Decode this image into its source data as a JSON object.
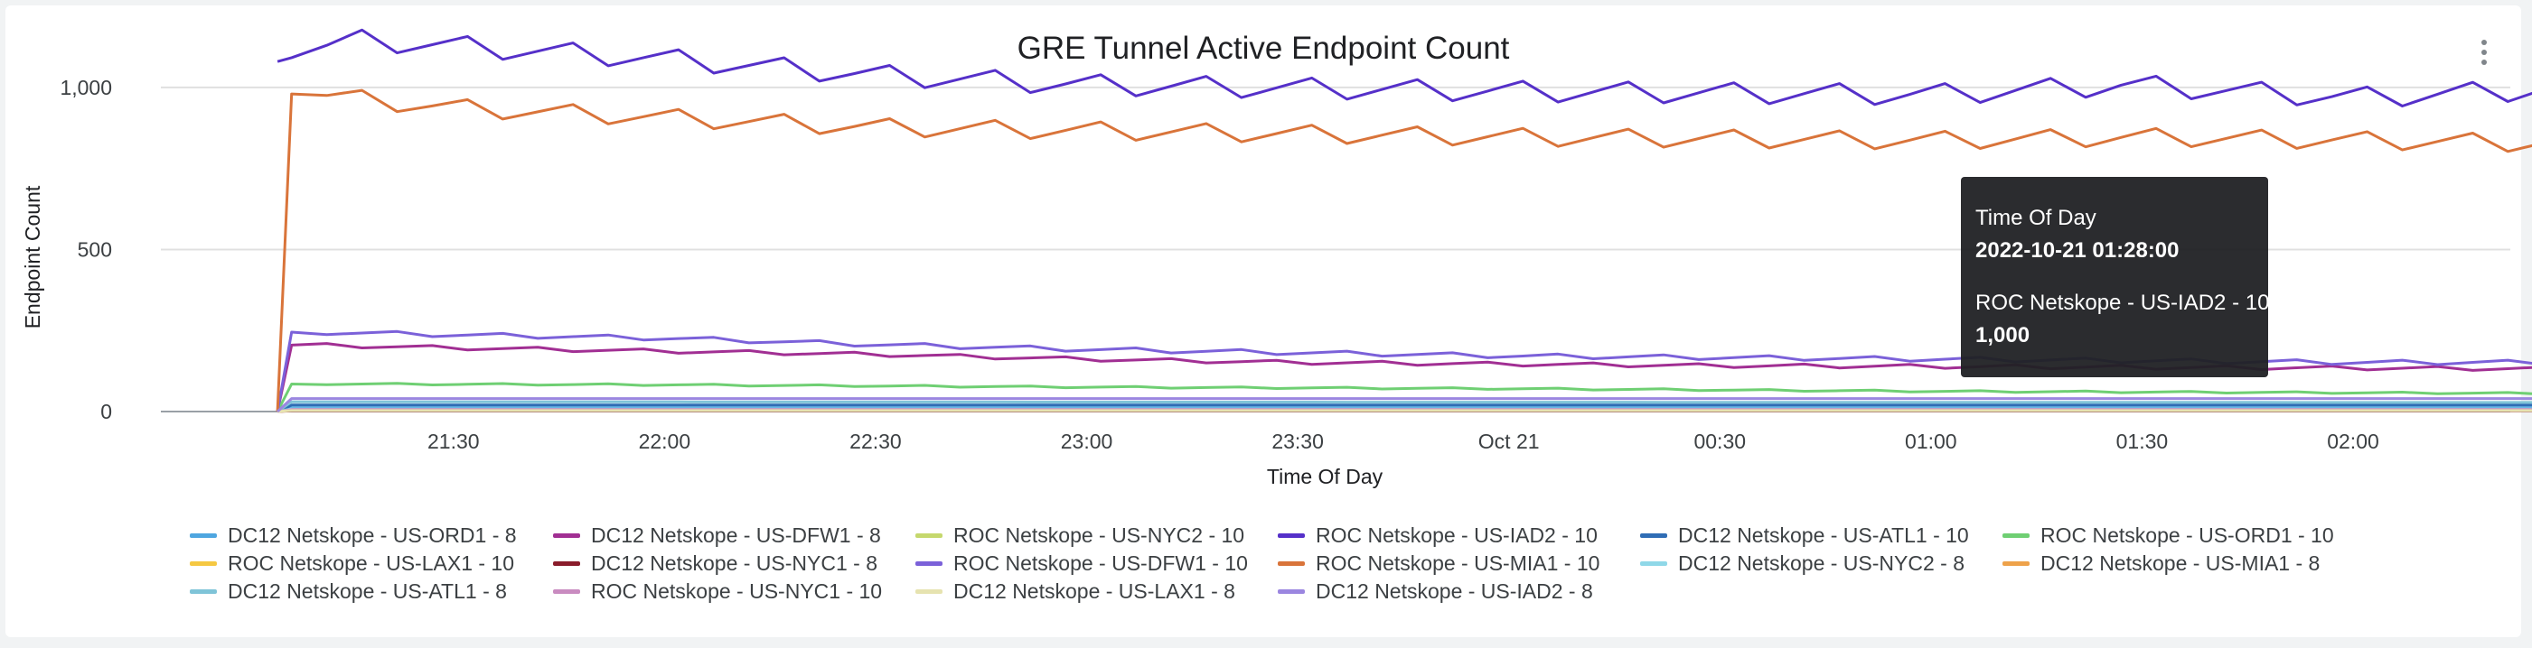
{
  "chart_data": {
    "type": "line",
    "title": "GRE Tunnel Active Endpoint Count",
    "xlabel": "Time Of Day",
    "ylabel": "Endpoint Count",
    "x_range": [
      "2022-10-20 21:05",
      "2022-10-21 02:32"
    ],
    "x_ticks": [
      {
        "t": "2022-10-20 21:30",
        "label": "21:30"
      },
      {
        "t": "2022-10-20 22:00",
        "label": "22:00"
      },
      {
        "t": "2022-10-20 22:30",
        "label": "22:30"
      },
      {
        "t": "2022-10-20 23:00",
        "label": "23:00"
      },
      {
        "t": "2022-10-20 23:30",
        "label": "23:30"
      },
      {
        "t": "2022-10-21 00:00",
        "label": "Oct 21"
      },
      {
        "t": "2022-10-21 00:30",
        "label": "00:30"
      },
      {
        "t": "2022-10-21 01:00",
        "label": "01:00"
      },
      {
        "t": "2022-10-21 01:30",
        "label": "01:30"
      },
      {
        "t": "2022-10-21 02:00",
        "label": "02:00"
      }
    ],
    "ylim": [
      0,
      1100
    ],
    "y_ticks": [
      {
        "v": 0,
        "label": "0"
      },
      {
        "v": 500,
        "label": "500"
      },
      {
        "v": 1000,
        "label": "1,000"
      }
    ],
    "grid": true,
    "legend_position": "bottom",
    "series": [
      {
        "name": "DC12 Netskope - US-ORD1 - 8",
        "color": "#4ea6e0",
        "x": [
          "2022-10-20 21:05",
          "2022-10-20 21:07",
          "2022-10-21 02:32"
        ],
        "values": [
          0,
          12,
          12
        ]
      },
      {
        "name": "DC12 Netskope - US-DFW1 - 8",
        "color": "#a12f93",
        "x": [
          "2022-10-20 21:05",
          "2022-10-20 21:07",
          "2022-10-20 21:30",
          "2022-10-20 22:00",
          "2022-10-20 22:30",
          "2022-10-20 23:00",
          "2022-10-20 23:30",
          "2022-10-21 00:00",
          "2022-10-21 00:30",
          "2022-10-21 01:00",
          "2022-10-21 01:30",
          "2022-10-21 02:00",
          "2022-10-21 02:32"
        ],
        "values": [
          0,
          205,
          195,
          185,
          175,
          160,
          150,
          145,
          140,
          138,
          135,
          133,
          130
        ]
      },
      {
        "name": "ROC Netskope - US-NYC2 - 10",
        "color": "#c5d86d",
        "x": [
          "2022-10-20 21:05",
          "2022-10-20 21:07",
          "2022-10-21 02:32"
        ],
        "values": [
          0,
          5,
          5
        ]
      },
      {
        "name": "ROC Netskope - US-IAD2 - 10",
        "color": "#5530c9",
        "x": [
          "2022-10-20 21:05",
          "2022-10-20 21:15",
          "2022-10-20 21:30",
          "2022-10-20 22:00",
          "2022-10-20 22:30",
          "2022-10-20 23:00",
          "2022-10-20 23:30",
          "2022-10-21 00:00",
          "2022-10-21 00:30",
          "2022-10-21 01:00",
          "2022-10-21 01:28",
          "2022-10-21 02:00",
          "2022-10-21 02:32"
        ],
        "values": [
          1080,
          1140,
          1120,
          1080,
          1030,
          1000,
          990,
          980,
          975,
          970,
          1000,
          960,
          990
        ]
      },
      {
        "name": "DC12 Netskope - US-ATL1 - 10",
        "color": "#2f6db5",
        "x": [
          "2022-10-20 21:05",
          "2022-10-20 21:07",
          "2022-10-21 02:32"
        ],
        "values": [
          0,
          20,
          20
        ]
      },
      {
        "name": "ROC Netskope - US-ORD1 - 10",
        "color": "#6fcf73",
        "x": [
          "2022-10-20 21:05",
          "2022-10-20 21:07",
          "2022-10-20 22:00",
          "2022-10-20 23:00",
          "2022-10-21 00:00",
          "2022-10-21 01:00",
          "2022-10-21 02:32"
        ],
        "values": [
          0,
          85,
          82,
          75,
          70,
          62,
          55
        ]
      },
      {
        "name": "ROC Netskope - US-LAX1 - 10",
        "color": "#f5c842",
        "x": [
          "2022-10-20 21:05",
          "2022-10-20 21:07",
          "2022-10-21 02:32"
        ],
        "values": [
          0,
          3,
          3
        ]
      },
      {
        "name": "DC12 Netskope - US-NYC1 - 8",
        "color": "#8a1c2b",
        "x": [
          "2022-10-20 21:05",
          "2022-10-20 21:07",
          "2022-10-21 02:32"
        ],
        "values": [
          0,
          2,
          2
        ]
      },
      {
        "name": "ROC Netskope - US-DFW1 - 10",
        "color": "#7b61d9",
        "x": [
          "2022-10-20 21:05",
          "2022-10-20 21:07",
          "2022-10-20 21:30",
          "2022-10-20 22:00",
          "2022-10-20 22:30",
          "2022-10-20 23:00",
          "2022-10-20 23:30",
          "2022-10-21 00:00",
          "2022-10-21 00:30",
          "2022-10-21 01:00",
          "2022-10-21 01:30",
          "2022-10-21 02:00",
          "2022-10-21 02:32"
        ],
        "values": [
          0,
          245,
          235,
          225,
          205,
          190,
          180,
          170,
          165,
          160,
          155,
          150,
          150
        ]
      },
      {
        "name": "ROC Netskope - US-MIA1 - 10",
        "color": "#d9743a",
        "x": [
          "2022-10-20 21:05",
          "2022-10-20 21:07",
          "2022-10-20 21:20",
          "2022-10-20 21:30",
          "2022-10-20 22:00",
          "2022-10-20 22:30",
          "2022-10-20 23:00",
          "2022-10-20 23:30",
          "2022-10-21 00:00",
          "2022-10-21 00:30",
          "2022-10-21 01:00",
          "2022-10-21 01:30",
          "2022-10-21 02:00",
          "2022-10-21 02:32"
        ],
        "values": [
          0,
          980,
          950,
          930,
          900,
          870,
          860,
          850,
          840,
          835,
          830,
          840,
          830,
          820
        ]
      },
      {
        "name": "DC12 Netskope - US-NYC2 - 8",
        "color": "#8fd8e8",
        "x": [
          "2022-10-20 21:05",
          "2022-10-20 21:07",
          "2022-10-21 02:32"
        ],
        "values": [
          0,
          8,
          8
        ]
      },
      {
        "name": "DC12 Netskope - US-MIA1 - 8",
        "color": "#eea24a",
        "x": [
          "2022-10-20 21:05",
          "2022-10-20 21:07",
          "2022-10-21 02:32"
        ],
        "values": [
          0,
          4,
          4
        ]
      },
      {
        "name": "DC12 Netskope - US-ATL1 - 8",
        "color": "#7fc4d8",
        "x": [
          "2022-10-20 21:05",
          "2022-10-20 21:07",
          "2022-10-21 02:32"
        ],
        "values": [
          0,
          30,
          28
        ]
      },
      {
        "name": "ROC Netskope - US-NYC1 - 10",
        "color": "#c98bc0",
        "x": [
          "2022-10-20 21:05",
          "2022-10-20 21:07",
          "2022-10-21 02:32"
        ],
        "values": [
          0,
          6,
          6
        ]
      },
      {
        "name": "DC12 Netskope - US-LAX1 - 8",
        "color": "#e6e3b0",
        "x": [
          "2022-10-20 21:05",
          "2022-10-20 21:07",
          "2022-10-21 02:32"
        ],
        "values": [
          0,
          3,
          3
        ]
      },
      {
        "name": "DC12 Netskope - US-IAD2 - 8",
        "color": "#9b86e0",
        "x": [
          "2022-10-20 21:05",
          "2022-10-20 21:07",
          "2022-10-21 02:32"
        ],
        "values": [
          0,
          40,
          40
        ]
      }
    ]
  },
  "tooltip": {
    "header": "Time Of Day",
    "time": "2022-10-21 01:28:00",
    "series_name": "ROC Netskope - US-IAD2 - 10",
    "value": "1,000"
  }
}
